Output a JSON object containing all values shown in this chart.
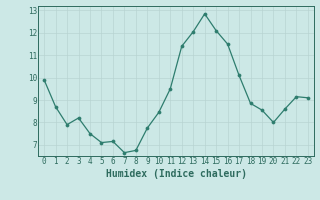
{
  "x": [
    0,
    1,
    2,
    3,
    4,
    5,
    6,
    7,
    8,
    9,
    10,
    11,
    12,
    13,
    14,
    15,
    16,
    17,
    18,
    19,
    20,
    21,
    22,
    23
  ],
  "y": [
    9.9,
    8.7,
    7.9,
    8.2,
    7.5,
    7.1,
    7.15,
    6.65,
    6.75,
    7.75,
    8.45,
    9.5,
    11.4,
    12.05,
    12.85,
    12.1,
    11.5,
    10.1,
    8.85,
    8.55,
    8.0,
    8.6,
    9.15,
    9.1
  ],
  "xlabel": "Humidex (Indice chaleur)",
  "ylim": [
    6.5,
    13.2
  ],
  "xlim": [
    -0.5,
    23.5
  ],
  "yticks": [
    7,
    8,
    9,
    10,
    11,
    12,
    13
  ],
  "xticks": [
    0,
    1,
    2,
    3,
    4,
    5,
    6,
    7,
    8,
    9,
    10,
    11,
    12,
    13,
    14,
    15,
    16,
    17,
    18,
    19,
    20,
    21,
    22,
    23
  ],
  "line_color": "#2e7d6e",
  "marker_color": "#2e7d6e",
  "bg_color": "#cce8e6",
  "grid_color_major": "#b8d4d2",
  "grid_color_minor": "#b8d4d2",
  "axis_color": "#2e6b5e",
  "tick_fontsize": 5.5,
  "xlabel_fontsize": 7.0,
  "linewidth": 0.9,
  "markersize": 2.2
}
